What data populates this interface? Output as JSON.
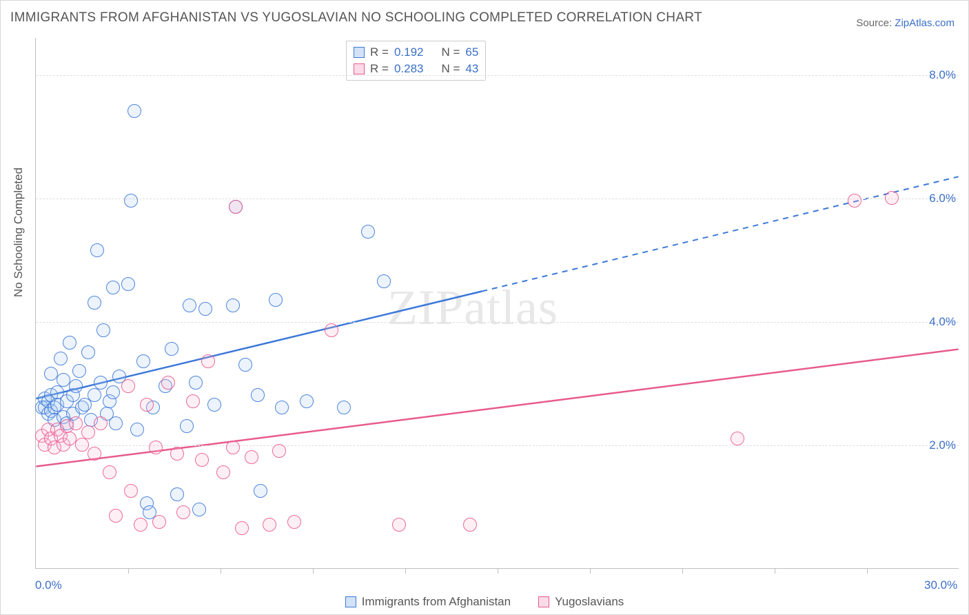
{
  "title": "IMMIGRANTS FROM AFGHANISTAN VS YUGOSLAVIAN NO SCHOOLING COMPLETED CORRELATION CHART",
  "source_prefix": "Source: ",
  "source_link": "ZipAtlas.com",
  "ylabel": "No Schooling Completed",
  "watermark": "ZIPatlas",
  "chart": {
    "type": "scatter",
    "xlim": [
      0,
      30
    ],
    "ylim": [
      0,
      8.6
    ],
    "x_ticks_minor": [
      3,
      6,
      9,
      12,
      15,
      18,
      21,
      24,
      27
    ],
    "x_axis_labels": [
      {
        "v": 0,
        "t": "0.0%"
      },
      {
        "v": 30,
        "t": "30.0%"
      }
    ],
    "y_gridlines": [
      2,
      4,
      6,
      8
    ],
    "y_tick_labels": [
      {
        "v": 2,
        "t": "2.0%"
      },
      {
        "v": 4,
        "t": "4.0%"
      },
      {
        "v": 6,
        "t": "6.0%"
      },
      {
        "v": 8,
        "t": "8.0%"
      }
    ],
    "background_color": "#ffffff",
    "grid_color": "#dddddd",
    "axis_color": "#bfbfbf",
    "marker_radius": 10,
    "marker_stroke_width": 1.5,
    "marker_fill_opacity": 0.25,
    "line_width": 2.5,
    "series": [
      {
        "name": "Immigrants from Afghanistan",
        "stroke": "#3b78d8",
        "fill": "#a8c6ef",
        "R": "0.192",
        "N": "65",
        "trend": {
          "x1": 0,
          "y1": 2.75,
          "x2": 30,
          "y2": 6.35,
          "solid_until_x": 14.5
        },
        "points": [
          [
            0.2,
            2.6
          ],
          [
            0.3,
            2.75
          ],
          [
            0.3,
            2.6
          ],
          [
            0.4,
            2.5
          ],
          [
            0.4,
            2.7
          ],
          [
            0.5,
            2.55
          ],
          [
            0.5,
            2.8
          ],
          [
            0.5,
            3.15
          ],
          [
            0.6,
            2.6
          ],
          [
            0.6,
            2.4
          ],
          [
            0.7,
            2.65
          ],
          [
            0.7,
            2.85
          ],
          [
            0.8,
            3.4
          ],
          [
            0.9,
            3.05
          ],
          [
            0.9,
            2.45
          ],
          [
            1.0,
            2.7
          ],
          [
            1.0,
            2.35
          ],
          [
            1.1,
            3.65
          ],
          [
            1.2,
            2.8
          ],
          [
            1.2,
            2.5
          ],
          [
            1.3,
            2.95
          ],
          [
            1.4,
            3.2
          ],
          [
            1.5,
            2.6
          ],
          [
            1.6,
            2.65
          ],
          [
            1.7,
            3.5
          ],
          [
            1.8,
            2.4
          ],
          [
            1.9,
            2.8
          ],
          [
            1.9,
            4.3
          ],
          [
            2.0,
            5.15
          ],
          [
            2.1,
            3.0
          ],
          [
            2.2,
            3.85
          ],
          [
            2.3,
            2.5
          ],
          [
            2.4,
            2.7
          ],
          [
            2.5,
            4.55
          ],
          [
            2.5,
            2.85
          ],
          [
            2.6,
            2.35
          ],
          [
            2.7,
            3.1
          ],
          [
            3.0,
            4.6
          ],
          [
            3.1,
            5.95
          ],
          [
            3.2,
            7.4
          ],
          [
            3.3,
            2.25
          ],
          [
            3.5,
            3.35
          ],
          [
            3.6,
            1.05
          ],
          [
            3.7,
            0.9
          ],
          [
            3.8,
            2.6
          ],
          [
            4.2,
            2.95
          ],
          [
            4.4,
            3.55
          ],
          [
            4.6,
            1.2
          ],
          [
            4.9,
            2.3
          ],
          [
            5.0,
            4.25
          ],
          [
            5.2,
            3.0
          ],
          [
            5.3,
            0.95
          ],
          [
            5.5,
            4.2
          ],
          [
            5.8,
            2.65
          ],
          [
            6.4,
            4.25
          ],
          [
            6.5,
            5.85
          ],
          [
            6.8,
            3.3
          ],
          [
            7.2,
            2.8
          ],
          [
            7.3,
            1.25
          ],
          [
            7.8,
            4.35
          ],
          [
            8.0,
            2.6
          ],
          [
            8.8,
            2.7
          ],
          [
            10.0,
            2.6
          ],
          [
            10.8,
            5.45
          ],
          [
            11.3,
            4.65
          ]
        ]
      },
      {
        "name": "Yugoslavians",
        "stroke": "#e85a8c",
        "fill": "#f6b8cf",
        "R": "0.283",
        "N": "43",
        "trend": {
          "x1": 0,
          "y1": 1.65,
          "x2": 30,
          "y2": 3.55,
          "solid_until_x": 30
        },
        "points": [
          [
            0.2,
            2.15
          ],
          [
            0.3,
            2.0
          ],
          [
            0.4,
            2.25
          ],
          [
            0.5,
            2.1
          ],
          [
            0.6,
            1.95
          ],
          [
            0.7,
            2.25
          ],
          [
            0.8,
            2.15
          ],
          [
            0.9,
            2.0
          ],
          [
            1.0,
            2.3
          ],
          [
            1.1,
            2.1
          ],
          [
            1.3,
            2.35
          ],
          [
            1.5,
            2.0
          ],
          [
            1.7,
            2.2
          ],
          [
            1.9,
            1.85
          ],
          [
            2.1,
            2.35
          ],
          [
            2.4,
            1.55
          ],
          [
            2.6,
            0.85
          ],
          [
            3.0,
            2.95
          ],
          [
            3.1,
            1.25
          ],
          [
            3.4,
            0.7
          ],
          [
            3.6,
            2.65
          ],
          [
            3.9,
            1.95
          ],
          [
            4.0,
            0.75
          ],
          [
            4.3,
            3.0
          ],
          [
            4.6,
            1.85
          ],
          [
            4.8,
            0.9
          ],
          [
            5.1,
            2.7
          ],
          [
            5.4,
            1.75
          ],
          [
            5.6,
            3.35
          ],
          [
            6.1,
            1.55
          ],
          [
            6.4,
            1.95
          ],
          [
            6.5,
            5.85
          ],
          [
            6.7,
            0.65
          ],
          [
            7.0,
            1.8
          ],
          [
            7.6,
            0.7
          ],
          [
            7.9,
            1.9
          ],
          [
            8.4,
            0.75
          ],
          [
            9.6,
            3.85
          ],
          [
            11.8,
            0.7
          ],
          [
            14.1,
            0.7
          ],
          [
            22.8,
            2.1
          ],
          [
            26.6,
            5.95
          ],
          [
            27.8,
            6.0
          ]
        ]
      }
    ]
  },
  "legend_stats_label_R": "R  =",
  "legend_stats_label_N": "N  =",
  "bottom_legend": [
    {
      "label": "Immigrants from Afghanistan",
      "stroke": "#3b78d8",
      "fill": "#a8c6ef"
    },
    {
      "label": "Yugoslavians",
      "stroke": "#e85a8c",
      "fill": "#f6b8cf"
    }
  ]
}
